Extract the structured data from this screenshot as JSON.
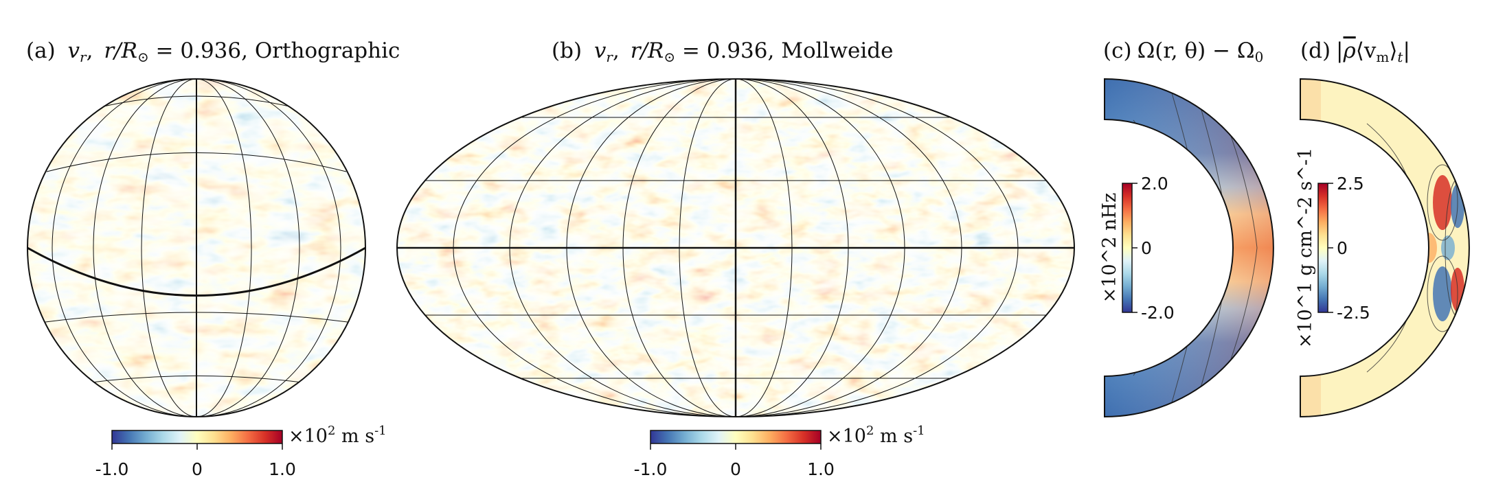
{
  "chart_data": [
    {
      "type": "heatmap",
      "panel": "a",
      "projection": "orthographic",
      "title": "(a) v_r, r/R⊙ = 0.936, Orthographic",
      "title_parts": {
        "label": "(a)",
        "var": "v",
        "sub": "r",
        "mid": ", ",
        "r": "r/R",
        "sun": "⊙",
        "eq": " = 0.936,  ",
        "name": "Orthographic"
      },
      "quantity": "radial velocity",
      "colorbar": {
        "min": -1.0,
        "max": 1.0,
        "ticks": [
          "-1.0",
          "0",
          "1.0"
        ],
        "unit_prefix": "×10",
        "unit_exp": "2",
        "unit_suffix": " m s",
        "unit_suffix_exp": "-1",
        "unit_text": "×10^2 m s^-1",
        "colormap": "RdYlBu_r"
      }
    },
    {
      "type": "heatmap",
      "panel": "b",
      "projection": "mollweide",
      "title": "(b) v_r, r/R⊙ = 0.936, Mollweide",
      "title_parts": {
        "label": "(b)",
        "var": "v",
        "sub": "r",
        "mid": ", ",
        "r": "r/R",
        "sun": "⊙",
        "eq": " = 0.936,  ",
        "name": "Mollweide"
      },
      "quantity": "radial velocity",
      "colorbar": {
        "min": -1.0,
        "max": 1.0,
        "ticks": [
          "-1.0",
          "0",
          "1.0"
        ],
        "unit_prefix": "×10",
        "unit_exp": "2",
        "unit_suffix": " m s",
        "unit_suffix_exp": "-1",
        "unit_text": "×10^2 m s^-1",
        "colormap": "RdYlBu_r"
      }
    },
    {
      "type": "heatmap",
      "panel": "c",
      "projection": "meridional",
      "title": "(c) Ω(r,θ) − Ω0",
      "title_parts": {
        "label": "(c)",
        "expr": "Ω(r, θ) − Ω",
        "sub": "0"
      },
      "quantity": "differential rotation",
      "colorbar": {
        "min": -2.0,
        "max": 2.0,
        "ticks": [
          "2.0",
          "0",
          "-2.0"
        ],
        "label": "×10^2 nHz",
        "colormap": "RdYlBu_r"
      }
    },
    {
      "type": "heatmap",
      "panel": "d",
      "projection": "meridional",
      "title": "(d) |ρ̄⟨v_m⟩_t|",
      "title_parts": {
        "label": "(d)",
        "open": "|",
        "rho": "ρ",
        "inner": "⟨v",
        "sub_m": "m",
        "close": "⟩",
        "sub_t": "t",
        "end": "|"
      },
      "quantity": "mass flux (meridional circulation)",
      "colorbar": {
        "min": -2.5,
        "max": 2.5,
        "ticks": [
          "2.5",
          "0",
          "-2.5"
        ],
        "label": "×10^1 g cm^-2 s^-1",
        "colormap": "RdYlBu_r"
      }
    }
  ],
  "colors": {
    "cmap": [
      "#313695",
      "#4575b4",
      "#74add1",
      "#abd9e9",
      "#e0f3f8",
      "#ffffbf",
      "#fee090",
      "#fdae61",
      "#f46d43",
      "#d73027",
      "#a50026"
    ],
    "grid": "#111111"
  }
}
